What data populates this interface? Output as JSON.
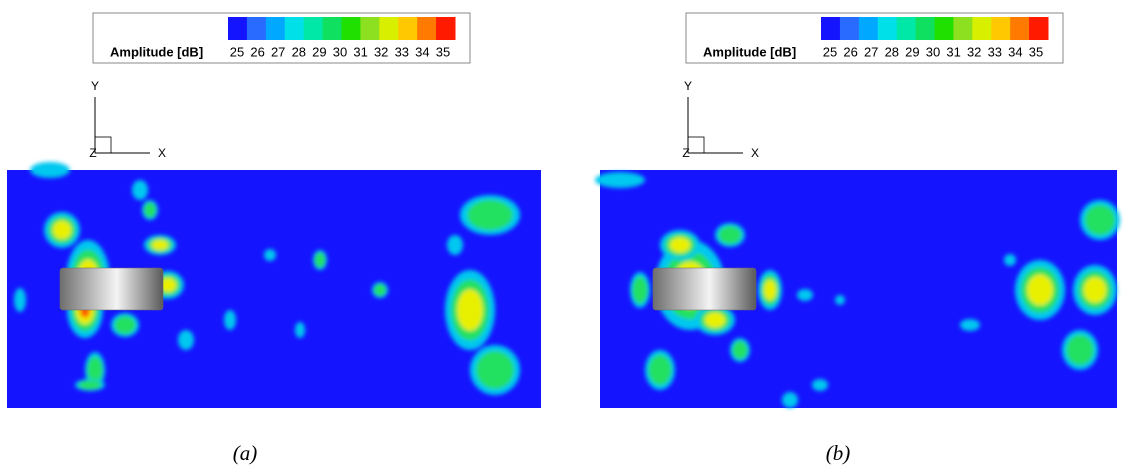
{
  "panels": [
    {
      "legend": {
        "title": "Amplitude [dB]",
        "ticks": [
          25,
          26,
          27,
          28,
          29,
          30,
          31,
          32,
          33,
          34,
          35
        ],
        "colors": [
          "#1414ff",
          "#2a6bff",
          "#00a8ff",
          "#00e0e8",
          "#00e8a8",
          "#10e060",
          "#20e000",
          "#8ce020",
          "#d8f000",
          "#ffc800",
          "#ff7a00",
          "#ff1a00"
        ]
      },
      "axes": {
        "y": "Y",
        "x": "X",
        "z": "Z"
      },
      "caption": "(a)"
    },
    {
      "legend": {
        "title": "Amplitude [dB]",
        "ticks": [
          25,
          26,
          27,
          28,
          29,
          30,
          31,
          32,
          33,
          34,
          35
        ],
        "colors": [
          "#1414ff",
          "#2a6bff",
          "#00a8ff",
          "#00e0e8",
          "#00e8a8",
          "#10e060",
          "#20e000",
          "#8ce020",
          "#d8f000",
          "#ffc800",
          "#ff7a00",
          "#ff1a00"
        ]
      },
      "axes": {
        "y": "Y",
        "x": "X",
        "z": "Z"
      },
      "caption": "(b)"
    }
  ]
}
